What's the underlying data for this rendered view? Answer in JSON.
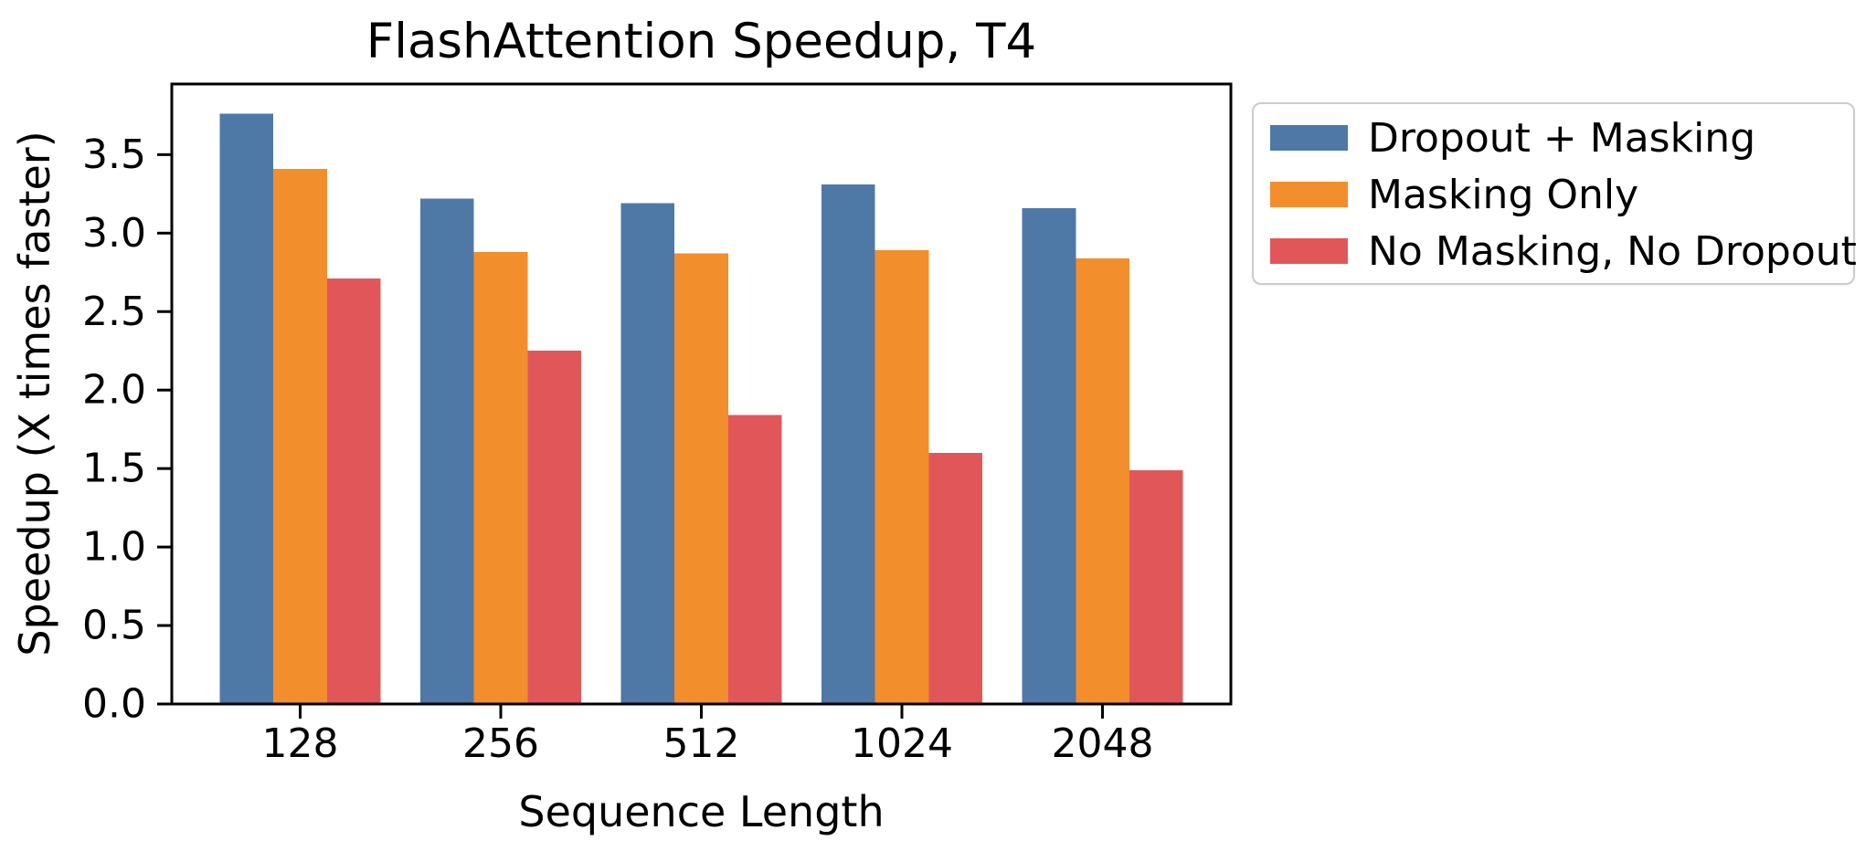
{
  "figure": {
    "background": "#ffffff",
    "text_color": "#000000",
    "axis_color": "#000000",
    "legend_border_color": "#cccccc"
  },
  "chart_data": {
    "type": "bar",
    "title": "FlashAttention Speedup, T4",
    "xlabel": "Sequence Length",
    "ylabel": "Speedup (X times faster)",
    "categories": [
      "128",
      "256",
      "512",
      "1024",
      "2048"
    ],
    "series": [
      {
        "name": "Dropout + Masking",
        "color": "#4E79A7",
        "values": [
          3.76,
          3.22,
          3.19,
          3.31,
          3.16
        ]
      },
      {
        "name": "Masking Only",
        "color": "#F28E2B",
        "values": [
          3.41,
          2.88,
          2.87,
          2.89,
          2.84
        ]
      },
      {
        "name": "No Masking, No Dropout",
        "color": "#E15759",
        "values": [
          2.71,
          2.25,
          1.84,
          1.6,
          1.49
        ]
      }
    ],
    "ylim": [
      0,
      3.95
    ],
    "ytick_values": [
      0.0,
      0.5,
      1.0,
      1.5,
      2.0,
      2.5,
      3.0,
      3.5
    ],
    "ytick_labels": [
      "0.0",
      "0.5",
      "1.0",
      "1.5",
      "2.0",
      "2.5",
      "3.0",
      "3.5"
    ],
    "grid": false,
    "legend_position": "upper-right-outside",
    "bar_group_width": 0.8
  }
}
